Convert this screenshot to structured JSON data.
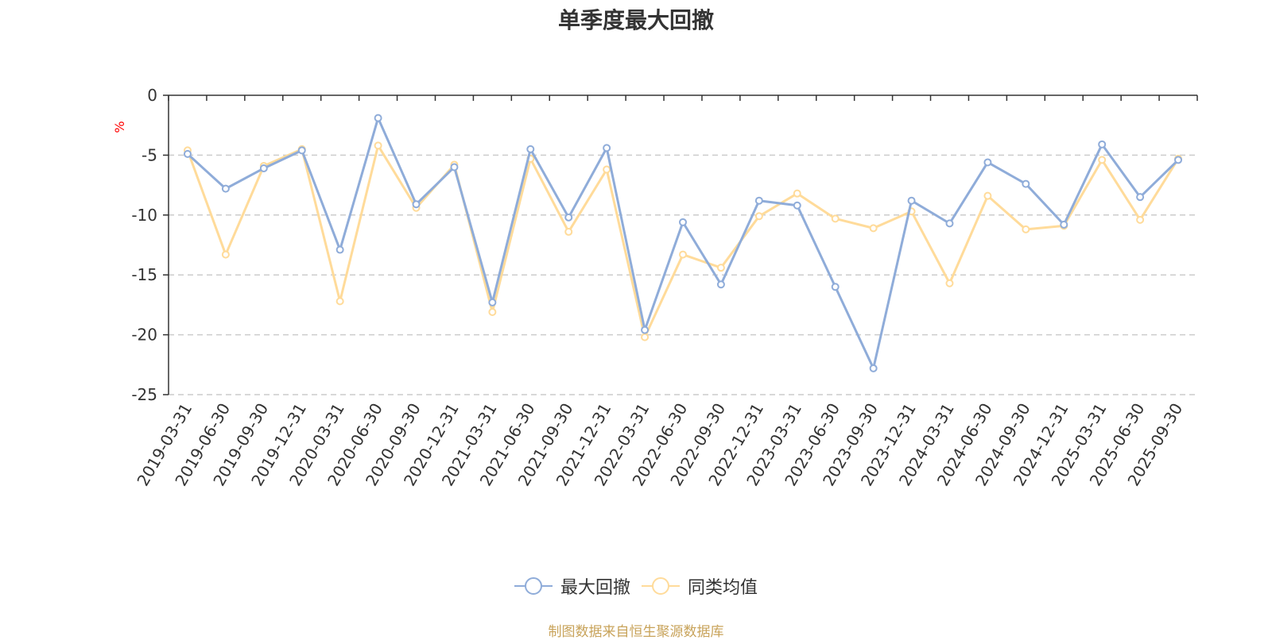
{
  "chart_data": {
    "type": "line",
    "title": "单季度最大回撤",
    "ylabel": "%",
    "ylim": [
      -25,
      0
    ],
    "yticks": [
      0,
      -5,
      -10,
      -15,
      -20,
      -25
    ],
    "grid": true,
    "categories": [
      "2019-03-31",
      "2019-06-30",
      "2019-09-30",
      "2019-12-31",
      "2020-03-31",
      "2020-06-30",
      "2020-09-30",
      "2020-12-31",
      "2021-03-31",
      "2021-06-30",
      "2021-09-30",
      "2021-12-31",
      "2022-03-31",
      "2022-06-30",
      "2022-09-30",
      "2022-12-31",
      "2023-03-31",
      "2023-06-30",
      "2023-09-30",
      "2023-12-31",
      "2024-03-31",
      "2024-06-30",
      "2024-09-30",
      "2024-12-31",
      "2025-03-31",
      "2025-06-30",
      "2025-09-30"
    ],
    "series": [
      {
        "name": "最大回撤",
        "color": "#8facd9",
        "values": [
          -4.9,
          -7.8,
          -6.1,
          -4.6,
          -12.9,
          -1.9,
          -9.1,
          -6.0,
          -17.3,
          -4.5,
          -10.2,
          -4.4,
          -19.6,
          -10.6,
          -15.8,
          -8.8,
          -9.2,
          -16.0,
          -22.8,
          -8.8,
          -10.7,
          -5.6,
          -7.4,
          -10.8,
          -4.1,
          -8.5,
          -5.4
        ]
      },
      {
        "name": "同类均值",
        "color": "#ffdb9a",
        "values": [
          -4.6,
          -13.3,
          -5.9,
          -4.5,
          -17.2,
          -4.2,
          -9.4,
          -5.8,
          -18.1,
          -5.3,
          -11.4,
          -6.2,
          -20.2,
          -13.3,
          -14.4,
          -10.1,
          -8.2,
          -10.3,
          -11.1,
          -9.7,
          -15.7,
          -8.4,
          -11.2,
          -10.9,
          -5.4,
          -10.4,
          -5.3
        ]
      }
    ],
    "legend_position": "bottom-center",
    "y_unit_color": "#ff0000"
  },
  "source": {
    "text": "制图数据来自恒生聚源数据库",
    "color": "#c8a35a"
  }
}
